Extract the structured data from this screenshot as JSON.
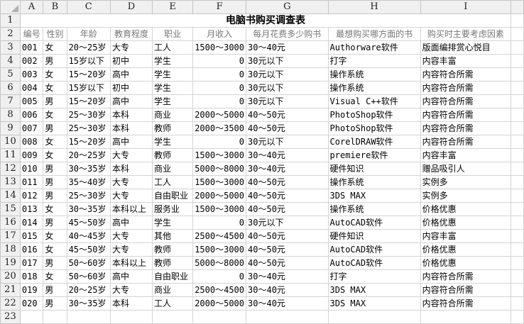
{
  "columns": [
    "A",
    "B",
    "C",
    "D",
    "E",
    "F",
    "G",
    "H",
    "I"
  ],
  "title": "电脑书购买调查表",
  "headers": [
    "编号",
    "性别",
    "年龄",
    "教育程度",
    "职业",
    "月收入",
    "每月花费多少购书",
    "最想购买哪方面的书",
    "购买时主要考虑因素"
  ],
  "rows": [
    [
      "001",
      "女",
      "20～25岁",
      "大专",
      "工人",
      "1500～3000",
      "30～40元",
      "Authorware软件",
      "版面编排赏心悦目"
    ],
    [
      "002",
      "男",
      "15岁以下",
      "初中",
      "学生",
      "0",
      "30元以下",
      "打字",
      "内容丰富"
    ],
    [
      "003",
      "女",
      "15～20岁",
      "高中",
      "学生",
      "0",
      "30元以下",
      "操作系统",
      "内容符合所需"
    ],
    [
      "004",
      "女",
      "15岁以下",
      "初中",
      "学生",
      "0",
      "30元以下",
      "操作系统",
      "内容符合所需"
    ],
    [
      "005",
      "男",
      "15～20岁",
      "高中",
      "学生",
      "0",
      "30元以下",
      "Visual C++软件",
      "内容符合所需"
    ],
    [
      "006",
      "女",
      "25～30岁",
      "本科",
      "商业",
      "2000～5000",
      "40～50元",
      "PhotoShop软件",
      "内容符合所需"
    ],
    [
      "007",
      "男",
      "25～30岁",
      "本科",
      "教师",
      "2000～3500",
      "40～50元",
      "PhotoShop软件",
      "内容符合所需"
    ],
    [
      "008",
      "女",
      "15～20岁",
      "高中",
      "学生",
      "0",
      "30元以下",
      "CorelDRAW软件",
      "内容符合所需"
    ],
    [
      "009",
      "女",
      "20～25岁",
      "大专",
      "教师",
      "1500～3000",
      "30～40元",
      "premiere软件",
      "内容丰富"
    ],
    [
      "010",
      "男",
      "30～35岁",
      "本科",
      "商业",
      "5000～8000",
      "30～40元",
      "硬件知识",
      "赠品吸引人"
    ],
    [
      "011",
      "男",
      "35～40岁",
      "大专",
      "工人",
      "1500～3000",
      "40～50元",
      "操作系统",
      "实例多"
    ],
    [
      "012",
      "男",
      "25～30岁",
      "大专",
      "自由职业",
      "2000～5000",
      "40～50元",
      "3DS MAX",
      "实例多"
    ],
    [
      "013",
      "女",
      "30～35岁",
      "本科以上",
      "服务业",
      "1500～3000",
      "40～50元",
      "操作系统",
      "价格优惠"
    ],
    [
      "014",
      "男",
      "45～50岁",
      "高中",
      "学生",
      "0",
      "30元以下",
      "AutoCAD软件",
      "价格优惠"
    ],
    [
      "015",
      "女",
      "40～45岁",
      "大专",
      "其他",
      "2500～4500",
      "40～50元",
      "硬件知识",
      "内容丰富"
    ],
    [
      "016",
      "女",
      "45～50岁",
      "大专",
      "教师",
      "1500～3000",
      "40～50元",
      "AutoCAD软件",
      "价格优惠"
    ],
    [
      "017",
      "男",
      "50～60岁",
      "本科以上",
      "教师",
      "5000～8000",
      "40～50元",
      "AutoCAD软件",
      "价格优惠"
    ],
    [
      "018",
      "女",
      "50～60岁",
      "高中",
      "自由职业",
      "0",
      "30～40元",
      "打字",
      "内容符合所需"
    ],
    [
      "019",
      "男",
      "20～25岁",
      "大专",
      "商业",
      "2500～4500",
      "30～40元",
      "3DS MAX",
      "内容符合所需"
    ],
    [
      "020",
      "男",
      "30～35岁",
      "本科",
      "工人",
      "2000～5000",
      "30～40元",
      "3DS MAX",
      "内容符合所需"
    ]
  ]
}
